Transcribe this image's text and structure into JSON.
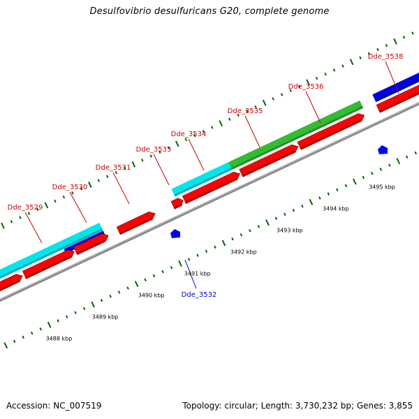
{
  "title": "Desulfovibrio desulfuricans G20, complete genome",
  "footer": {
    "accession": "Accession: NC_007519",
    "summary": "Topology: circular; Length: 3,730,232 bp; Genes: 3,855"
  },
  "colors": {
    "forward_cds": "#ff0000",
    "reverse_cds": "#0000ff",
    "cog_cyan": "#00e5ee",
    "cog_blue": "#0000e0",
    "cog_green": "#33bb33",
    "backbone": "#888888",
    "tick": "#006400",
    "label_forward": "#cc0000",
    "label_reverse": "#0000cc"
  },
  "scale": {
    "labels": [
      "3488 kbp",
      "3489 kbp",
      "3490 kbp",
      "3491 kbp",
      "3492 kbp",
      "3493 kbp",
      "3494 kbp",
      "3495 kbp"
    ]
  },
  "genes": [
    {
      "name": "Dde_3529",
      "strand": "+"
    },
    {
      "name": "Dde_3530",
      "strand": "+"
    },
    {
      "name": "Dde_3531",
      "strand": "+"
    },
    {
      "name": "Dde_3532",
      "strand": "-"
    },
    {
      "name": "Dde_3533",
      "strand": "+"
    },
    {
      "name": "Dde_3534",
      "strand": "+"
    },
    {
      "name": "Dde_3535",
      "strand": "+"
    },
    {
      "name": "Dde_3536",
      "strand": "+"
    },
    {
      "name": "Dde_3538",
      "strand": "+"
    }
  ]
}
